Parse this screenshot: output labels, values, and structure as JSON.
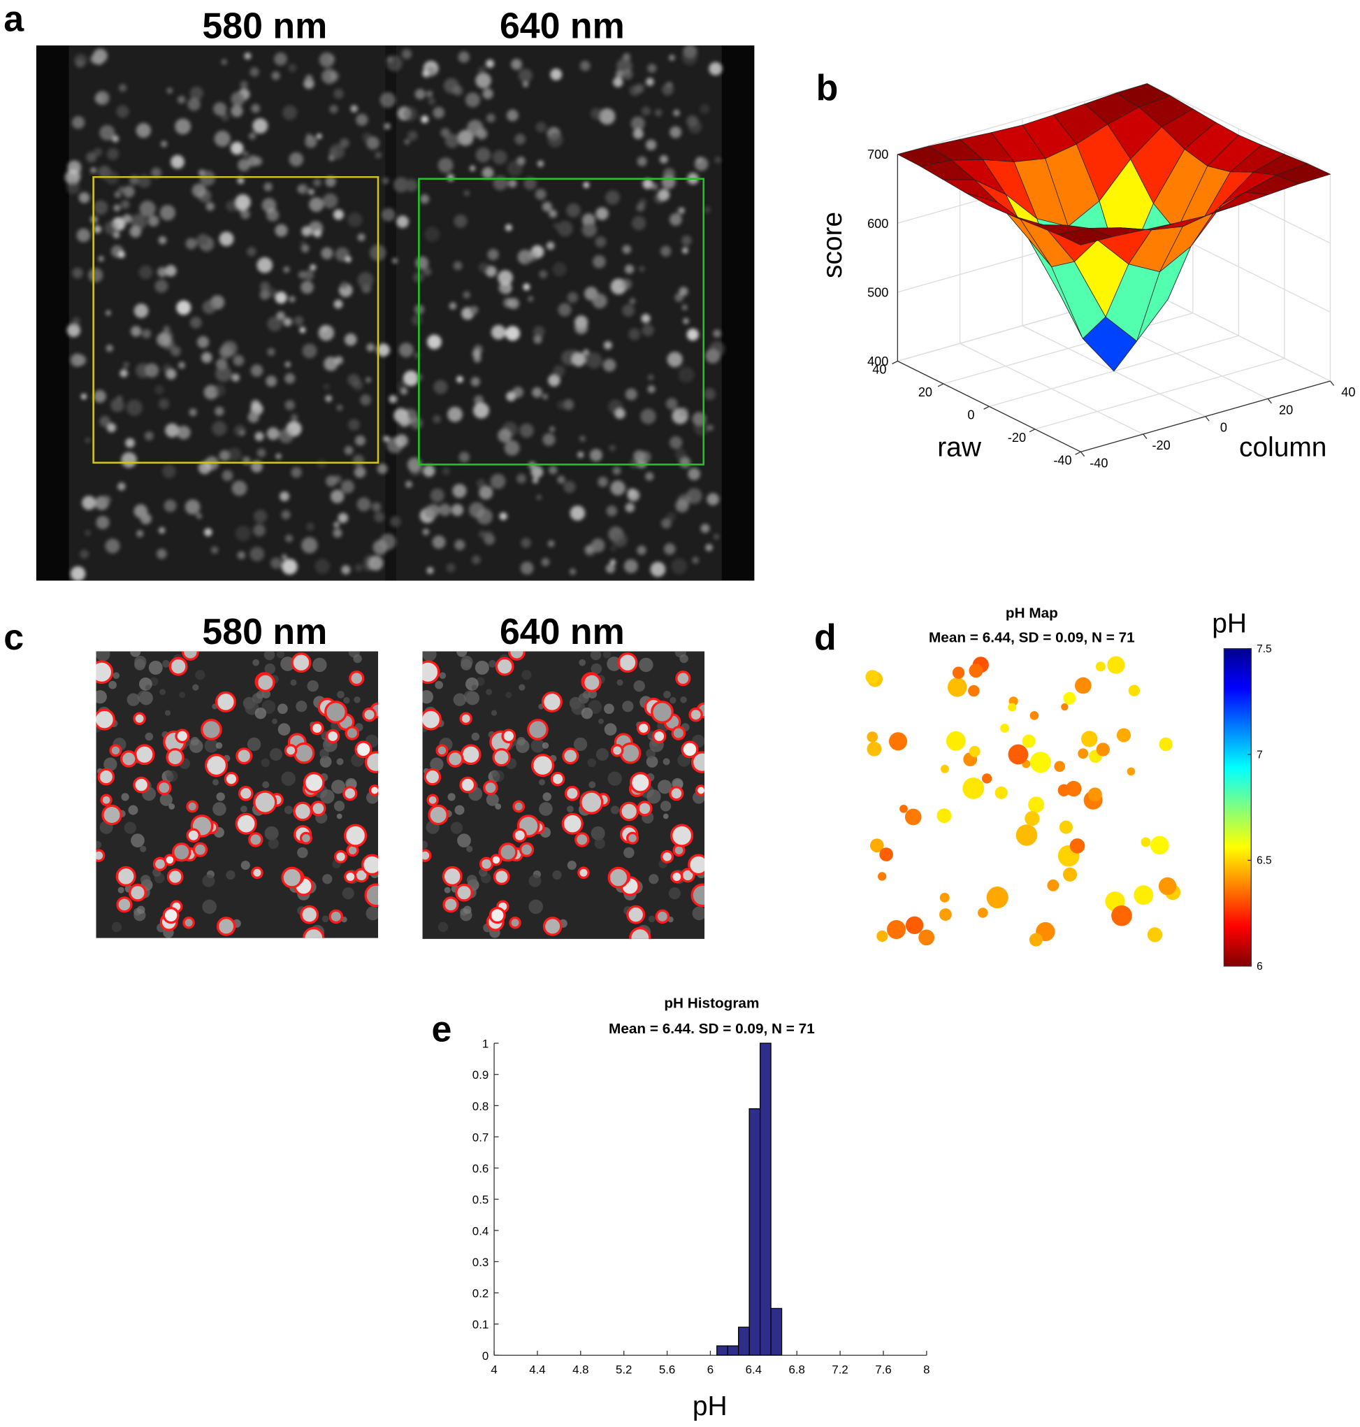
{
  "panel_a": {
    "letter": "a",
    "labels": [
      "580 nm",
      "640 nm"
    ]
  },
  "panel_c": {
    "letter": "c",
    "labels": [
      "580 nm",
      "640 nm"
    ]
  },
  "chart_data": [
    {
      "type": "surface",
      "panel": "b",
      "zlabel": "score",
      "ylabel": "raw",
      "xlabel": "column",
      "x": [
        -40,
        -30,
        -20,
        -10,
        0,
        10,
        20,
        30,
        40
      ],
      "y": [
        -40,
        -30,
        -20,
        -10,
        0,
        10,
        20,
        30,
        40
      ],
      "z": [
        [
          700,
          699,
          696,
          693,
          691,
          693,
          696,
          699,
          700
        ],
        [
          699,
          695,
          683,
          667,
          659,
          667,
          683,
          695,
          699
        ],
        [
          696,
          683,
          649,
          601,
          577,
          601,
          649,
          683,
          696
        ],
        [
          693,
          667,
          601,
          508,
          460,
          508,
          601,
          667,
          693
        ],
        [
          691,
          659,
          577,
          460,
          400,
          460,
          577,
          659,
          691
        ],
        [
          693,
          667,
          601,
          508,
          460,
          508,
          601,
          667,
          693
        ],
        [
          696,
          683,
          649,
          601,
          577,
          601,
          649,
          683,
          696
        ],
        [
          699,
          695,
          683,
          667,
          659,
          667,
          683,
          695,
          699
        ],
        [
          700,
          699,
          696,
          693,
          691,
          693,
          696,
          699,
          700
        ]
      ],
      "xlim": [
        -40,
        40
      ],
      "ylim": [
        -40,
        40
      ],
      "zlim": [
        400,
        700
      ],
      "xticks": [
        -40,
        -20,
        0,
        20,
        40
      ],
      "yticks": [
        -40,
        -20,
        0,
        20,
        40
      ],
      "zticks": [
        400,
        500,
        600,
        700
      ],
      "grid": true,
      "colormap": [
        "#00008f",
        "#0000ff",
        "#0080ff",
        "#00ffff",
        "#80ff80",
        "#ffff00",
        "#ff8000",
        "#ff0000",
        "#800000"
      ]
    },
    {
      "type": "map",
      "panel": "d",
      "title": "pH Map",
      "subtitle": "Mean = 6.44, SD = 0.09, N = 71",
      "colorbar_label": "pH",
      "clim": [
        6,
        7.5
      ],
      "cticks": [
        6,
        6.5,
        7,
        7.5
      ],
      "colormap": [
        "#800000",
        "#ff0000",
        "#ff8000",
        "#ffff00",
        "#80ff80",
        "#00ffff",
        "#0080ff",
        "#0000ff",
        "#00008f"
      ]
    },
    {
      "type": "histogram",
      "panel": "e",
      "title": "pH Histogram",
      "subtitle": "Mean = 6.44. SD = 0.09, N = 71",
      "xlabel": "pH",
      "bins": [
        6.06,
        6.16,
        6.26,
        6.36,
        6.46,
        6.56,
        6.66
      ],
      "values": [
        0.03,
        0.03,
        0.09,
        0.79,
        1,
        0.15
      ],
      "color": "#2e2e8a",
      "xlim": [
        4,
        8
      ],
      "xticks": [
        4,
        4.4,
        4.8,
        5.2,
        5.6,
        6,
        6.4,
        6.8,
        7.2,
        7.6,
        8
      ],
      "ylim": [
        0,
        1
      ],
      "yticks": [
        0,
        0.1,
        0.2,
        0.3,
        0.4,
        0.5,
        0.6,
        0.7,
        0.8,
        0.9,
        1
      ]
    }
  ]
}
